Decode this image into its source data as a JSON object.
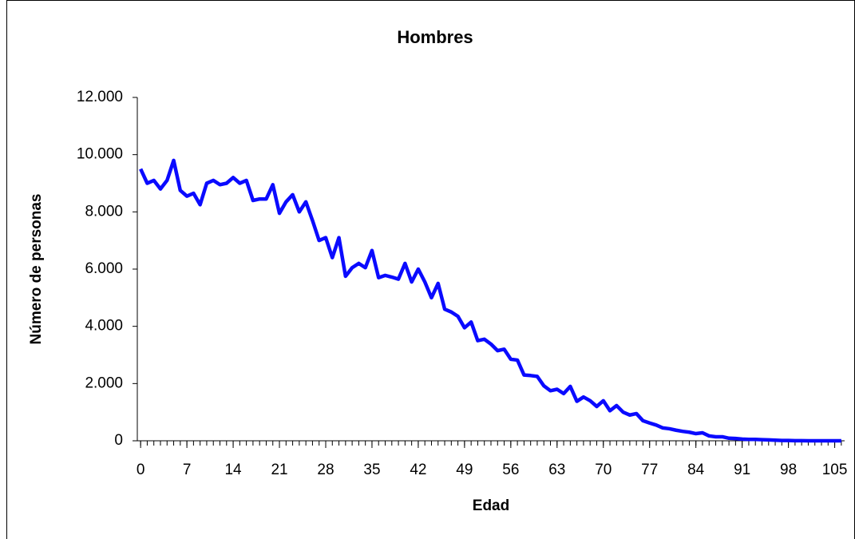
{
  "chart_data": {
    "type": "line",
    "title": "Hombres",
    "x_label": "Edad",
    "y_label": "Número de personas",
    "x": [
      0,
      1,
      2,
      3,
      4,
      5,
      6,
      7,
      8,
      9,
      10,
      11,
      12,
      13,
      14,
      15,
      16,
      17,
      18,
      19,
      20,
      21,
      22,
      23,
      24,
      25,
      26,
      27,
      28,
      29,
      30,
      31,
      32,
      33,
      34,
      35,
      36,
      37,
      38,
      39,
      40,
      41,
      42,
      43,
      44,
      45,
      46,
      47,
      48,
      49,
      50,
      51,
      52,
      53,
      54,
      55,
      56,
      57,
      58,
      59,
      60,
      61,
      62,
      63,
      64,
      65,
      66,
      67,
      68,
      69,
      70,
      71,
      72,
      73,
      74,
      75,
      76,
      77,
      78,
      79,
      80,
      81,
      82,
      83,
      84,
      85,
      86,
      87,
      88,
      89,
      90,
      91,
      92,
      93,
      94,
      95,
      96,
      97,
      98,
      99,
      100,
      101,
      102,
      103,
      104,
      105,
      106
    ],
    "series": [
      {
        "name": "Hombres",
        "color": "#0a0aff",
        "values": [
          9500,
          9000,
          9100,
          8800,
          9100,
          9800,
          8750,
          8550,
          8650,
          8250,
          9000,
          9100,
          8950,
          9000,
          9200,
          9000,
          9100,
          8400,
          8450,
          8450,
          8950,
          7950,
          8350,
          8600,
          8000,
          8350,
          7700,
          7000,
          7100,
          6400,
          7100,
          5750,
          6050,
          6200,
          6050,
          6650,
          5700,
          5780,
          5720,
          5650,
          6200,
          5550,
          6000,
          5550,
          5000,
          5500,
          4600,
          4500,
          4350,
          3950,
          4150,
          3500,
          3550,
          3380,
          3150,
          3200,
          2850,
          2820,
          2300,
          2280,
          2250,
          1920,
          1750,
          1800,
          1650,
          1900,
          1380,
          1530,
          1400,
          1200,
          1400,
          1050,
          1230,
          1000,
          900,
          950,
          700,
          620,
          550,
          450,
          420,
          370,
          330,
          300,
          250,
          280,
          170,
          140,
          140,
          90,
          80,
          60,
          50,
          50,
          40,
          30,
          20,
          10,
          10,
          5,
          5,
          0,
          0,
          0,
          0,
          0,
          0
        ]
      }
    ],
    "xlim": [
      -0.5,
      106.5
    ],
    "xticks": [
      0,
      7,
      14,
      21,
      28,
      35,
      42,
      49,
      56,
      63,
      70,
      77,
      84,
      91,
      98,
      105
    ],
    "ylim": [
      0,
      12000
    ],
    "yticks": [
      0,
      {
        "value": 2000,
        "label": "2.000"
      },
      {
        "value": 4000,
        "label": "4.000"
      },
      {
        "value": 6000,
        "label": "6.000"
      },
      {
        "value": 8000,
        "label": "8.000"
      },
      {
        "value": 10000,
        "label": "10.000"
      },
      {
        "value": 12000,
        "label": "12.000"
      }
    ]
  }
}
